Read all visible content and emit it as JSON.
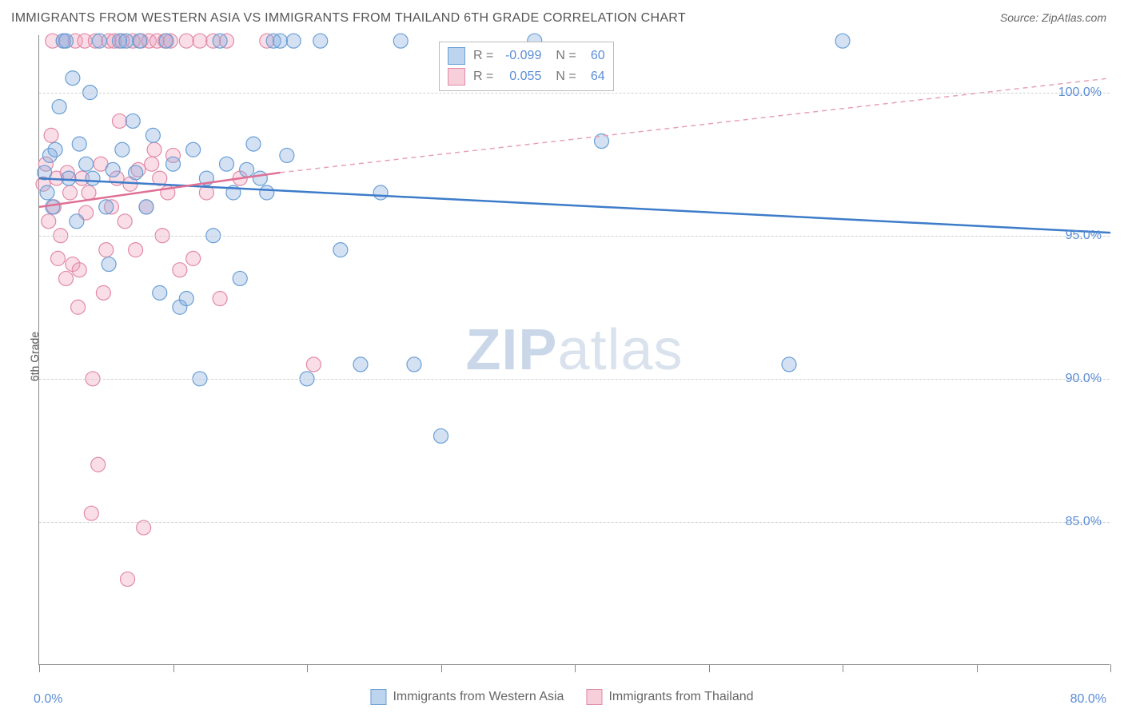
{
  "title": "IMMIGRANTS FROM WESTERN ASIA VS IMMIGRANTS FROM THAILAND 6TH GRADE CORRELATION CHART",
  "source": "Source: ZipAtlas.com",
  "ylabel": "6th Grade",
  "watermark_zip": "ZIP",
  "watermark_atlas": "atlas",
  "chart": {
    "type": "scatter",
    "xlim": [
      0,
      80
    ],
    "ylim": [
      80,
      102
    ],
    "yticks": [
      85,
      90,
      95,
      100
    ],
    "ytick_labels": [
      "85.0%",
      "90.0%",
      "95.0%",
      "100.0%"
    ],
    "xtick_positions": [
      0,
      10,
      20,
      30,
      40,
      50,
      60,
      70,
      80
    ],
    "xaxis_left_label": "0.0%",
    "xaxis_right_label": "80.0%",
    "background_color": "#ffffff",
    "grid_color": "#d0d0d0",
    "marker_radius": 9,
    "marker_stroke_width": 1.2,
    "trendline_width": 2.5,
    "series": [
      {
        "name": "Immigrants from Western Asia",
        "color_fill": "rgba(130,170,220,0.35)",
        "color_stroke": "#6a9fd4",
        "swatch_fill": "#bcd4ee",
        "swatch_border": "#6a9fd4",
        "r": "-0.099",
        "n": "60",
        "trendline": {
          "x1": 0,
          "y1": 97.0,
          "x2": 80,
          "y2": 95.1,
          "dashed": false,
          "color": "#3d7cc9"
        },
        "points": [
          [
            0.4,
            97.2
          ],
          [
            0.6,
            96.5
          ],
          [
            0.8,
            97.8
          ],
          [
            1.0,
            96.0
          ],
          [
            1.2,
            98.0
          ],
          [
            1.5,
            99.5
          ],
          [
            1.8,
            101.8
          ],
          [
            2.0,
            101.8
          ],
          [
            2.2,
            97.0
          ],
          [
            2.5,
            100.5
          ],
          [
            2.8,
            95.5
          ],
          [
            3.0,
            98.2
          ],
          [
            3.5,
            97.5
          ],
          [
            3.8,
            100.0
          ],
          [
            4.0,
            97.0
          ],
          [
            4.5,
            101.8
          ],
          [
            5.0,
            96.0
          ],
          [
            5.2,
            94.0
          ],
          [
            5.5,
            97.3
          ],
          [
            6.0,
            101.8
          ],
          [
            6.2,
            98.0
          ],
          [
            6.5,
            101.8
          ],
          [
            7.0,
            99.0
          ],
          [
            7.2,
            97.2
          ],
          [
            7.5,
            101.8
          ],
          [
            8.0,
            96.0
          ],
          [
            8.5,
            98.5
          ],
          [
            9.0,
            93.0
          ],
          [
            9.5,
            101.8
          ],
          [
            10.0,
            97.5
          ],
          [
            10.5,
            92.5
          ],
          [
            11.0,
            92.8
          ],
          [
            11.5,
            98.0
          ],
          [
            12.0,
            90.0
          ],
          [
            12.5,
            97.0
          ],
          [
            13.0,
            95.0
          ],
          [
            13.5,
            101.8
          ],
          [
            14.0,
            97.5
          ],
          [
            14.5,
            96.5
          ],
          [
            15.0,
            93.5
          ],
          [
            15.5,
            97.3
          ],
          [
            16.0,
            98.2
          ],
          [
            16.5,
            97.0
          ],
          [
            17.0,
            96.5
          ],
          [
            17.5,
            101.8
          ],
          [
            18.0,
            101.8
          ],
          [
            18.5,
            97.8
          ],
          [
            19.0,
            101.8
          ],
          [
            20.0,
            90.0
          ],
          [
            21.0,
            101.8
          ],
          [
            22.5,
            94.5
          ],
          [
            24.0,
            90.5
          ],
          [
            25.5,
            96.5
          ],
          [
            27.0,
            101.8
          ],
          [
            28.0,
            90.5
          ],
          [
            30.0,
            88.0
          ],
          [
            37.0,
            101.8
          ],
          [
            42.0,
            98.3
          ],
          [
            56.0,
            90.5
          ],
          [
            60.0,
            101.8
          ]
        ]
      },
      {
        "name": "Immigrants from Thailand",
        "color_fill": "rgba(240,160,185,0.35)",
        "color_stroke": "#e08aa8",
        "swatch_fill": "#f7cfdb",
        "swatch_border": "#e08aa8",
        "r": "0.055",
        "n": "64",
        "trendline": {
          "x1": 0,
          "y1": 96.0,
          "x2": 18,
          "y2": 97.2,
          "dashed": false,
          "color": "#e06f93"
        },
        "trendline_ext": {
          "x1": 18,
          "y1": 97.2,
          "x2": 80,
          "y2": 100.5,
          "dashed": true,
          "color": "#e8a0b8"
        },
        "points": [
          [
            0.3,
            96.8
          ],
          [
            0.5,
            97.5
          ],
          [
            0.7,
            95.5
          ],
          [
            0.9,
            98.5
          ],
          [
            1.0,
            101.8
          ],
          [
            1.1,
            96.0
          ],
          [
            1.3,
            97.0
          ],
          [
            1.4,
            94.2
          ],
          [
            1.6,
            95.0
          ],
          [
            1.8,
            101.8
          ],
          [
            2.0,
            93.5
          ],
          [
            2.1,
            97.2
          ],
          [
            2.3,
            96.5
          ],
          [
            2.5,
            94.0
          ],
          [
            2.7,
            101.8
          ],
          [
            2.9,
            92.5
          ],
          [
            3.0,
            93.8
          ],
          [
            3.2,
            97.0
          ],
          [
            3.4,
            101.8
          ],
          [
            3.5,
            95.8
          ],
          [
            3.7,
            96.5
          ],
          [
            3.9,
            85.3
          ],
          [
            4.0,
            90.0
          ],
          [
            4.2,
            101.8
          ],
          [
            4.4,
            87.0
          ],
          [
            4.6,
            97.5
          ],
          [
            4.8,
            93.0
          ],
          [
            5.0,
            94.5
          ],
          [
            5.2,
            101.8
          ],
          [
            5.4,
            96.0
          ],
          [
            5.6,
            101.8
          ],
          [
            5.8,
            97.0
          ],
          [
            6.0,
            99.0
          ],
          [
            6.2,
            101.8
          ],
          [
            6.4,
            95.5
          ],
          [
            6.6,
            83.0
          ],
          [
            6.8,
            96.8
          ],
          [
            7.0,
            101.8
          ],
          [
            7.2,
            94.5
          ],
          [
            7.4,
            97.3
          ],
          [
            7.6,
            101.8
          ],
          [
            7.8,
            84.8
          ],
          [
            8.0,
            96.0
          ],
          [
            8.2,
            101.8
          ],
          [
            8.4,
            97.5
          ],
          [
            8.6,
            98.0
          ],
          [
            8.8,
            101.8
          ],
          [
            9.0,
            97.0
          ],
          [
            9.2,
            95.0
          ],
          [
            9.4,
            101.8
          ],
          [
            9.6,
            96.5
          ],
          [
            9.8,
            101.8
          ],
          [
            10.0,
            97.8
          ],
          [
            10.5,
            93.8
          ],
          [
            11.0,
            101.8
          ],
          [
            11.5,
            94.2
          ],
          [
            12.0,
            101.8
          ],
          [
            12.5,
            96.5
          ],
          [
            13.0,
            101.8
          ],
          [
            13.5,
            92.8
          ],
          [
            14.0,
            101.8
          ],
          [
            15.0,
            97.0
          ],
          [
            17.0,
            101.8
          ],
          [
            20.5,
            90.5
          ]
        ]
      }
    ]
  },
  "stat_legend": {
    "r_label": "R =",
    "n_label": "N ="
  }
}
